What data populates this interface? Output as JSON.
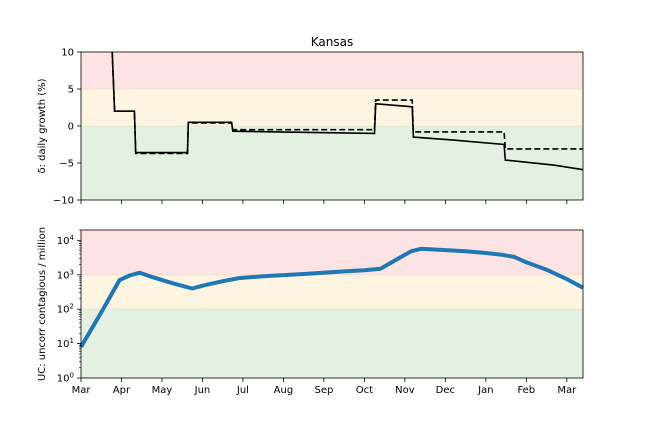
{
  "title": "Kansas",
  "chart_data": [
    {
      "type": "line",
      "title": "Kansas",
      "ylabel": "δ: daily growth (%)",
      "ylim": [
        -10,
        10
      ],
      "yticks": [
        10,
        5,
        0,
        -5,
        -10
      ],
      "ytick_labels": [
        "10",
        "5",
        "0",
        "−5",
        "−10"
      ],
      "xlim": [
        0,
        12.4
      ],
      "bands": [
        {
          "from": 5,
          "to": 10,
          "color": "#fde3e3"
        },
        {
          "from": 0,
          "to": 5,
          "color": "#fdf4e1"
        },
        {
          "from": -10,
          "to": 0,
          "color": "#e4f0e2"
        }
      ],
      "series": [
        {
          "style": "solid",
          "color": "#000000",
          "points": [
            [
              0.77,
              10
            ],
            [
              0.83,
              2
            ],
            [
              1.32,
              2
            ],
            [
              1.35,
              -3.6
            ],
            [
              2.63,
              -3.6
            ],
            [
              2.65,
              0.5
            ],
            [
              3.72,
              0.5
            ],
            [
              3.75,
              -0.7
            ],
            [
              7.25,
              -1.0
            ],
            [
              7.28,
              3.0
            ],
            [
              8.18,
              2.6
            ],
            [
              8.21,
              -1.5
            ],
            [
              9.2,
              -1.9
            ],
            [
              10.45,
              -2.5
            ],
            [
              10.48,
              -4.6
            ],
            [
              11.7,
              -5.3
            ],
            [
              12.4,
              -5.9
            ]
          ]
        },
        {
          "style": "dashed",
          "color": "#000000",
          "points": [
            [
              0.77,
              10
            ],
            [
              0.83,
              2
            ],
            [
              1.32,
              2
            ],
            [
              1.35,
              -3.7
            ],
            [
              2.63,
              -3.7
            ],
            [
              2.65,
              0.4
            ],
            [
              3.72,
              0.4
            ],
            [
              3.75,
              -0.5
            ],
            [
              7.25,
              -0.5
            ],
            [
              7.28,
              3.5
            ],
            [
              8.18,
              3.5
            ],
            [
              8.21,
              -0.8
            ],
            [
              10.45,
              -0.8
            ],
            [
              10.48,
              -3.1
            ],
            [
              12.4,
              -3.1
            ]
          ]
        }
      ]
    },
    {
      "type": "line",
      "ylabel": "UC: uncorr contagious / million",
      "yscale": "log",
      "ylim": [
        1,
        20000
      ],
      "yticks": [
        1,
        10,
        100,
        1000,
        10000
      ],
      "ytick_exponents": [
        "0",
        "1",
        "2",
        "3",
        "4"
      ],
      "xlim": [
        0,
        12.4
      ],
      "categories": [
        "Mar",
        "Apr",
        "May",
        "Jun",
        "Jul",
        "Aug",
        "Sep",
        "Oct",
        "Nov",
        "Dec",
        "Jan",
        "Feb",
        "Mar"
      ],
      "bands": [
        {
          "from": 1000,
          "to": 20000,
          "color": "#fde3e3"
        },
        {
          "from": 100,
          "to": 1000,
          "color": "#fdf4e1"
        },
        {
          "from": 1,
          "to": 100,
          "color": "#e4f0e2"
        }
      ],
      "series": [
        {
          "style": "solid",
          "color": "#1f77b4",
          "points": [
            [
              0,
              8
            ],
            [
              0.5,
              80
            ],
            [
              0.95,
              700
            ],
            [
              1.2,
              950
            ],
            [
              1.45,
              1150
            ],
            [
              1.7,
              900
            ],
            [
              2.3,
              550
            ],
            [
              2.75,
              400
            ],
            [
              3.0,
              480
            ],
            [
              3.5,
              650
            ],
            [
              3.9,
              800
            ],
            [
              4.5,
              900
            ],
            [
              5.5,
              1050
            ],
            [
              6.5,
              1250
            ],
            [
              7.0,
              1350
            ],
            [
              7.4,
              1500
            ],
            [
              7.8,
              2800
            ],
            [
              8.15,
              4800
            ],
            [
              8.4,
              5700
            ],
            [
              9.0,
              5200
            ],
            [
              9.5,
              4800
            ],
            [
              10.0,
              4300
            ],
            [
              10.4,
              3800
            ],
            [
              10.7,
              3300
            ],
            [
              11.0,
              2300
            ],
            [
              11.5,
              1400
            ],
            [
              12.0,
              750
            ],
            [
              12.4,
              420
            ]
          ]
        }
      ]
    }
  ]
}
